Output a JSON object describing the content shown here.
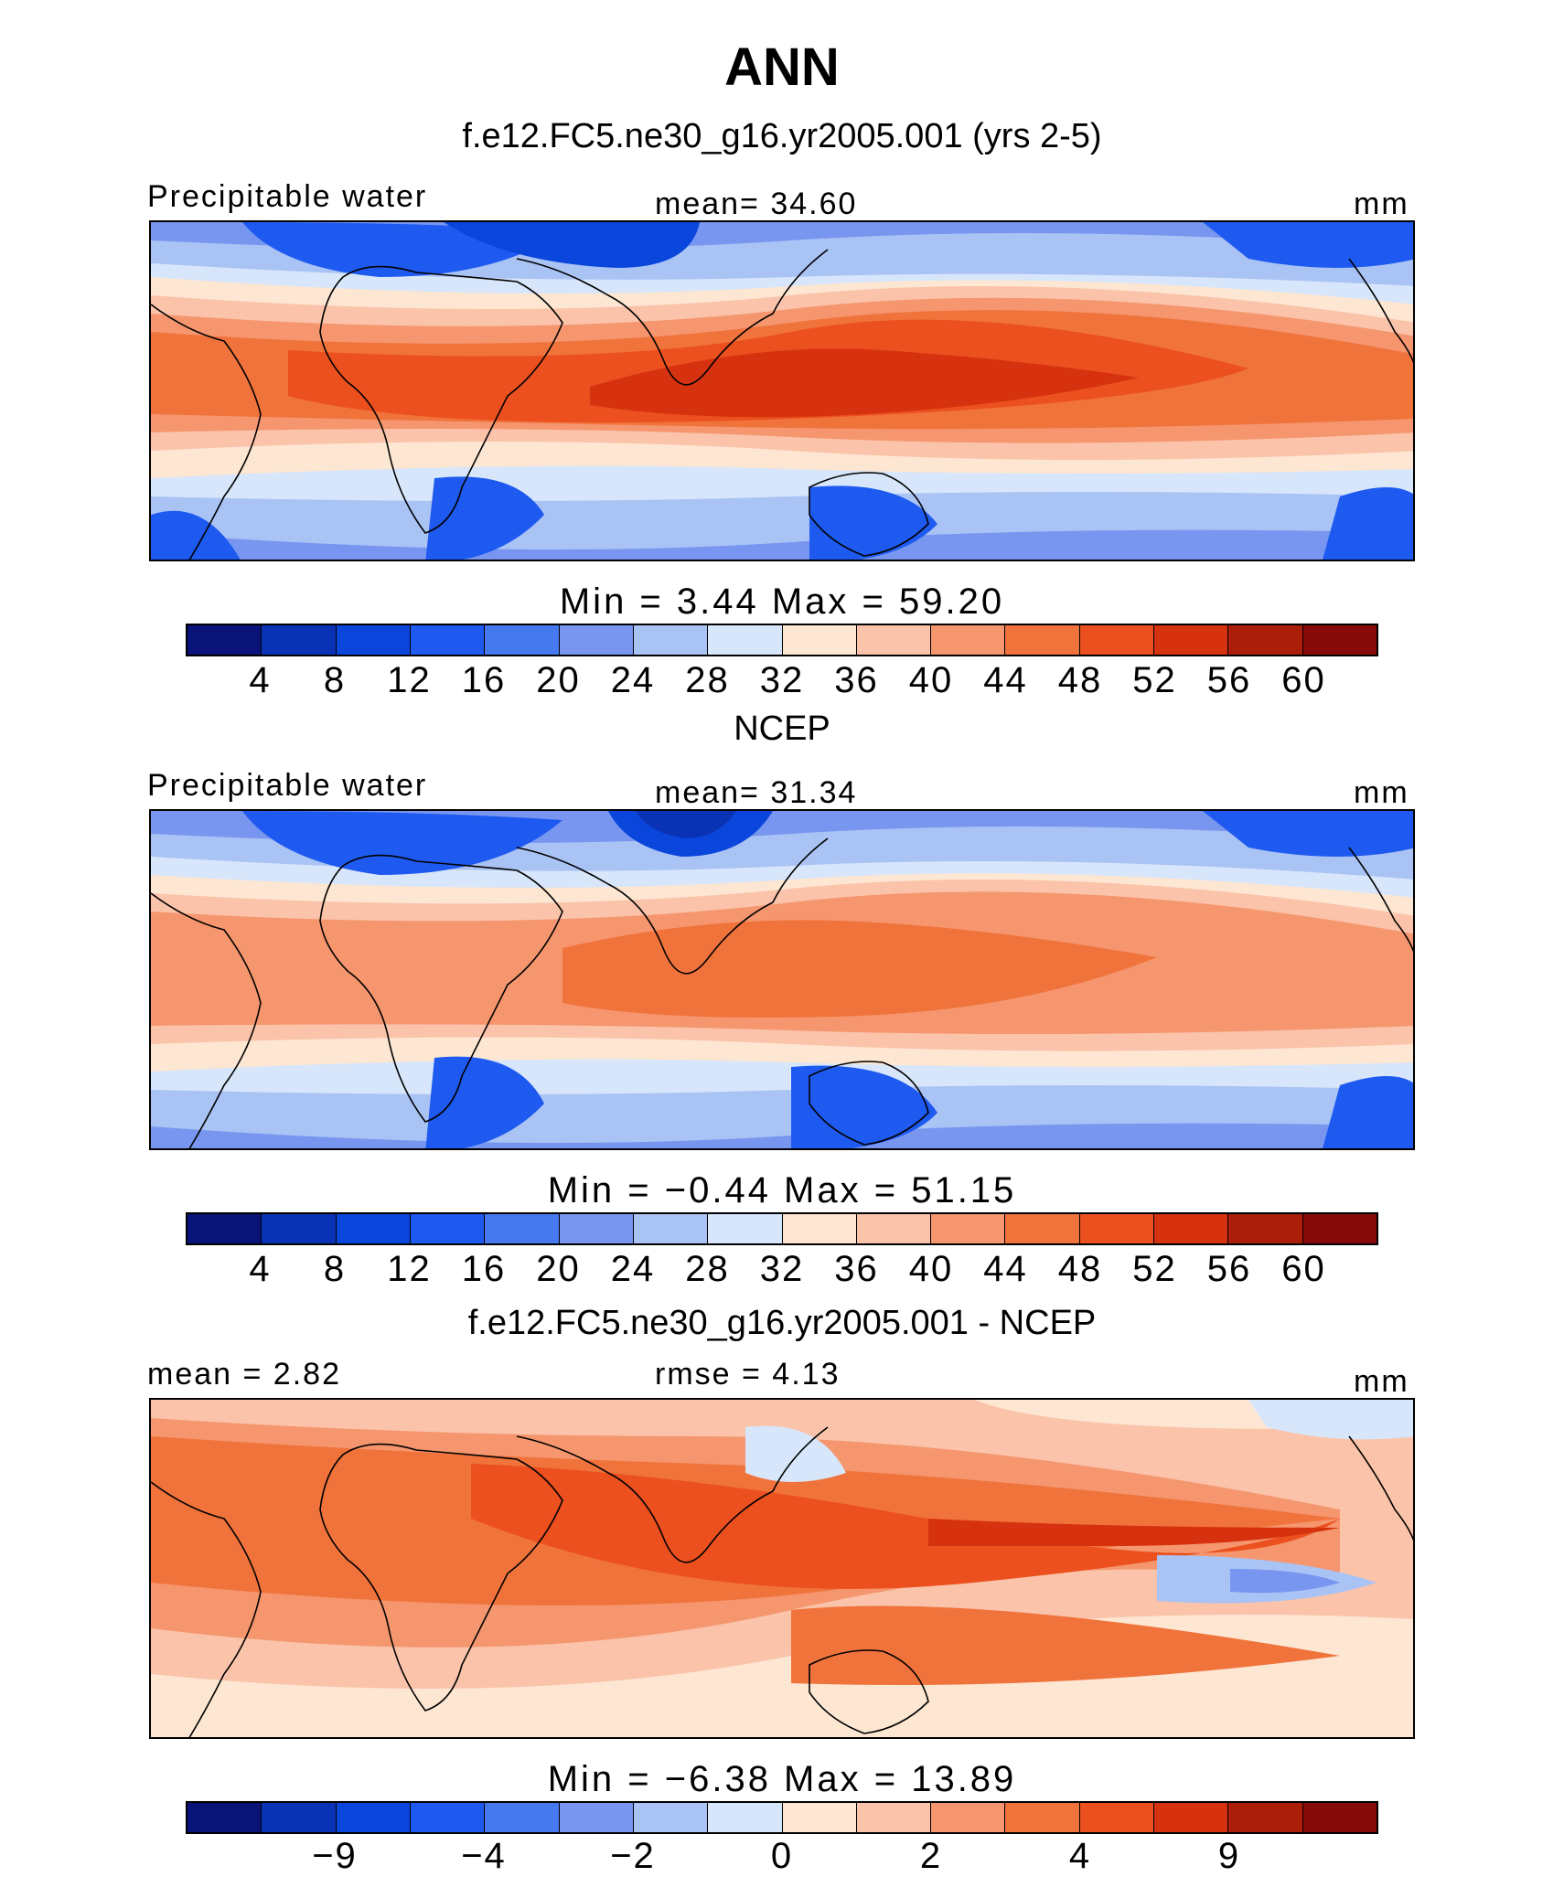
{
  "figure": {
    "title": "ANN"
  },
  "colors": {
    "scale": [
      "#0a1478",
      "#0a32b4",
      "#0a46dc",
      "#1e5af0",
      "#4678f0",
      "#7896f0",
      "#aac3f5",
      "#d7e6fa",
      "#fde6d2",
      "#fac3aa",
      "#f5966e",
      "#f0733c",
      "#eb501e",
      "#d7320f",
      "#aa1e0a",
      "#870a0a"
    ],
    "coast": "#000000"
  },
  "panels": [
    {
      "title": "f.e12.FC5.ne30_g16.yr2005.001 (yrs 2-5)",
      "left_label": "Precipitable water",
      "center_label": "mean=   34.60",
      "right_label": "mm",
      "minmax": "Min  =     3.44  Max  =    59.20",
      "colorbar_ticks": [
        "4",
        "8",
        "12",
        "16",
        "20",
        "24",
        "28",
        "32",
        "36",
        "40",
        "44",
        "48",
        "52",
        "56",
        "60"
      ]
    },
    {
      "title": "NCEP",
      "left_label": "Precipitable water",
      "center_label": "mean=   31.34",
      "right_label": "mm",
      "minmax": "Min  =   −0.44  Max  =    51.15",
      "colorbar_ticks": [
        "4",
        "8",
        "12",
        "16",
        "20",
        "24",
        "28",
        "32",
        "36",
        "40",
        "44",
        "48",
        "52",
        "56",
        "60"
      ]
    },
    {
      "title": "f.e12.FC5.ne30_g16.yr2005.001 - NCEP",
      "left_label": "mean  =    2.82",
      "center_label": "rmse  =    4.13",
      "right_label": "mm",
      "minmax": "Min  =   −6.38  Max  =    13.89",
      "colorbar_ticks": [
        "−9",
        "−4",
        "−2",
        "0",
        "2",
        "4",
        "9"
      ]
    }
  ],
  "chart_data": [
    {
      "type": "heatmap",
      "title": "f.e12.FC5.ne30_g16.yr2005.001 (yrs 2-5)",
      "variable": "Precipitable water",
      "units": "mm",
      "mean": 34.6,
      "min": 3.44,
      "max": 59.2,
      "contour_levels": [
        4,
        8,
        12,
        16,
        20,
        24,
        28,
        32,
        36,
        40,
        44,
        48,
        52,
        56,
        60
      ]
    },
    {
      "type": "heatmap",
      "title": "NCEP",
      "variable": "Precipitable water",
      "units": "mm",
      "mean": 31.34,
      "min": -0.44,
      "max": 51.15,
      "contour_levels": [
        4,
        8,
        12,
        16,
        20,
        24,
        28,
        32,
        36,
        40,
        44,
        48,
        52,
        56,
        60
      ]
    },
    {
      "type": "heatmap",
      "title": "f.e12.FC5.ne30_g16.yr2005.001 - NCEP",
      "units": "mm",
      "mean": 2.82,
      "rmse": 4.13,
      "min": -6.38,
      "max": 13.89,
      "contour_levels": [
        -9,
        -4,
        -2,
        0,
        2,
        4,
        9
      ]
    }
  ]
}
